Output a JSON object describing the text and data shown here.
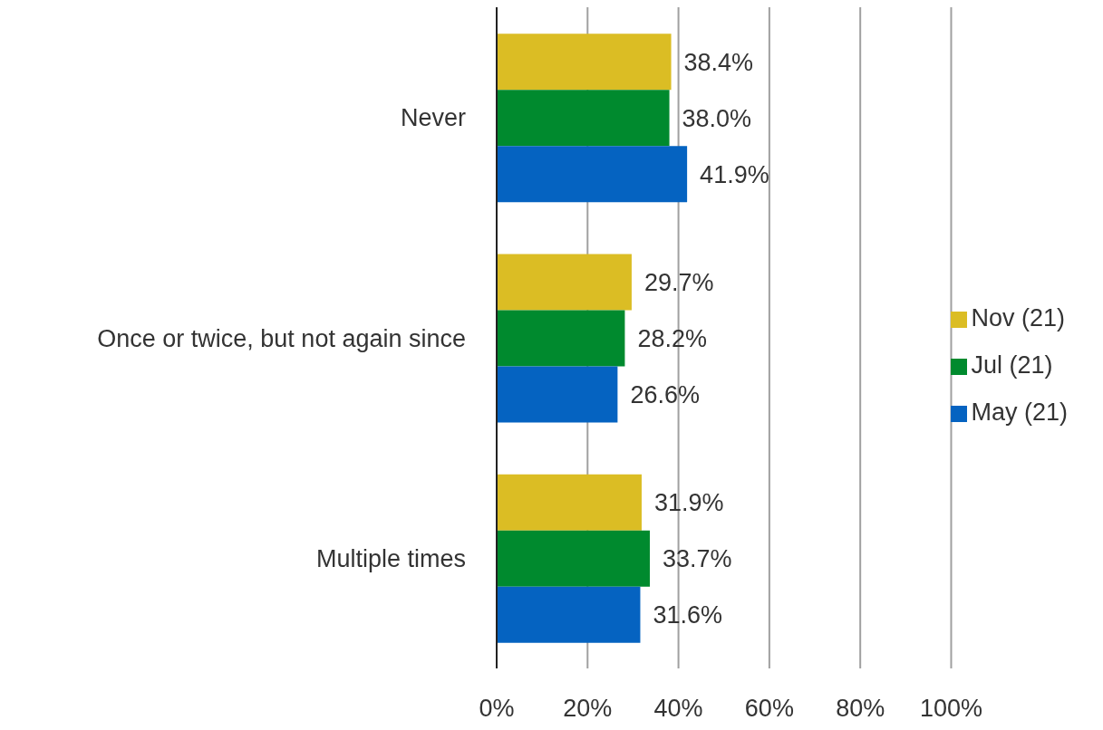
{
  "chart_data": {
    "type": "bar",
    "orientation": "horizontal",
    "categories": [
      "Never",
      "Once or twice, but not again since",
      "Multiple times"
    ],
    "series": [
      {
        "name": "Nov (21)",
        "color": "#dbbd24",
        "values": [
          38.4,
          29.7,
          31.9
        ],
        "value_labels": [
          "38.4%",
          "29.7%",
          "31.9%"
        ]
      },
      {
        "name": "Jul (21)",
        "color": "#008a2e",
        "values": [
          38.0,
          28.2,
          33.7
        ],
        "value_labels": [
          "38.0%",
          "28.2%",
          "33.7%"
        ]
      },
      {
        "name": "May (21)",
        "color": "#0563c1",
        "values": [
          41.9,
          26.6,
          31.6
        ],
        "value_labels": [
          "41.9%",
          "26.6%",
          "31.6%"
        ]
      }
    ],
    "xlim": [
      0,
      100
    ],
    "xticks": [
      {
        "value": 0,
        "label": "0%"
      },
      {
        "value": 20,
        "label": "20%"
      },
      {
        "value": 40,
        "label": "40%"
      },
      {
        "value": 60,
        "label": "60%"
      },
      {
        "value": 80,
        "label": "80%"
      },
      {
        "value": 100,
        "label": "100%"
      }
    ],
    "grid": "x",
    "legend": "right"
  }
}
